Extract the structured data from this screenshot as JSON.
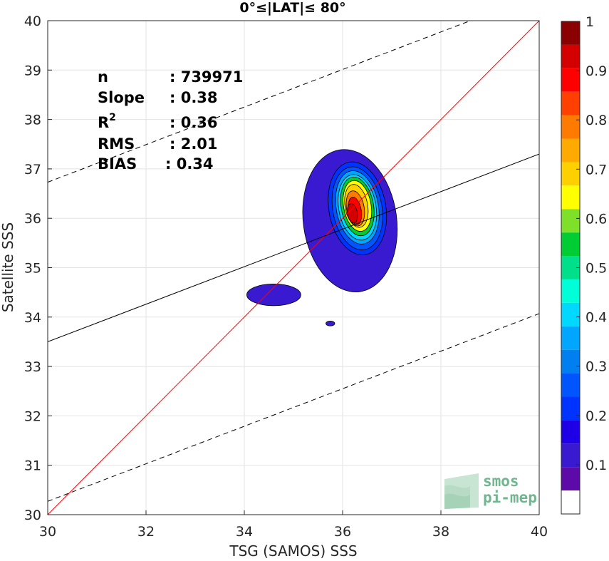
{
  "chart_data": {
    "type": "heatmap",
    "subtype": "filled-contour density scatter",
    "title": "0°≤|LAT|≤ 80°",
    "xlabel": "TSG (SAMOS) SSS",
    "ylabel": "Satellite SSS",
    "xlim": [
      30,
      40
    ],
    "ylim": [
      30,
      40
    ],
    "xticks": [
      30,
      32,
      34,
      36,
      38,
      40
    ],
    "yticks": [
      30,
      31,
      32,
      33,
      34,
      35,
      36,
      37,
      38,
      39,
      40
    ],
    "grid": true,
    "stats": [
      {
        "key": "n",
        "value": ": 739971"
      },
      {
        "key": "Slope",
        "value": ": 0.38"
      },
      {
        "key": "R",
        "sup": "2",
        "value": ": 0.36"
      },
      {
        "key": "RMS",
        "value": ": 2.01"
      },
      {
        "key": "BIAS",
        "value": ": 0.34"
      }
    ],
    "lines": {
      "identity": {
        "x": [
          30,
          40
        ],
        "y": [
          30,
          40
        ],
        "color": "#ff0000",
        "style": "solid"
      },
      "regression": {
        "x": [
          30,
          40
        ],
        "y": [
          33.5,
          37.3
        ],
        "color": "#000000",
        "style": "solid"
      },
      "upper_bound": {
        "x": [
          30,
          38.6
        ],
        "y": [
          36.73,
          40
        ],
        "color": "#000000",
        "style": "dashed"
      },
      "lower_bound": {
        "x": [
          30,
          40
        ],
        "y": [
          30.27,
          34.07
        ],
        "color": "#000000",
        "style": "dashed"
      }
    },
    "colorbar": {
      "ticks": [
        "0.1",
        "0.2",
        "0.3",
        "0.4",
        "0.5",
        "0.6",
        "0.7",
        "0.8",
        "0.9",
        "1"
      ],
      "levels": [
        0,
        0.05,
        0.1,
        0.15,
        0.2,
        0.25,
        0.3,
        0.35,
        0.4,
        0.45,
        0.5,
        0.55,
        0.6,
        0.65,
        0.7,
        0.75,
        0.8,
        0.85,
        0.9,
        0.95,
        1.0
      ],
      "colors": [
        "#ffffff",
        "#5c0aa8",
        "#3a1ad0",
        "#1f00e6",
        "#0033ff",
        "#0055ff",
        "#007ff0",
        "#00a6ff",
        "#00d8ff",
        "#00ffd8",
        "#00e08a",
        "#00cc33",
        "#7fe02a",
        "#ffff00",
        "#ffd000",
        "#ffaa00",
        "#ff7a00",
        "#ff4000",
        "#ff0000",
        "#d40000",
        "#8b0000"
      ]
    },
    "contours": [
      {
        "level": 0.05,
        "color": "#3a1ad0",
        "center": [
          36.15,
          35.95
        ],
        "rx": 0.95,
        "ry": 1.45,
        "rot": -8
      },
      {
        "level": 0.05,
        "color": "#3a1ad0",
        "center": [
          34.6,
          34.45
        ],
        "rx": 0.55,
        "ry": 0.22,
        "rot": 0
      },
      {
        "level": 0.05,
        "color": "#3a1ad0",
        "center": [
          35.75,
          33.87
        ],
        "rx": 0.09,
        "ry": 0.05,
        "rot": 0
      },
      {
        "level": 0.15,
        "color": "#0033ff",
        "center": [
          36.3,
          36.2
        ],
        "rx": 0.58,
        "ry": 0.95,
        "rot": -10
      },
      {
        "level": 0.2,
        "color": "#0055ff",
        "center": [
          36.3,
          36.2
        ],
        "rx": 0.5,
        "ry": 0.85,
        "rot": -10
      },
      {
        "level": 0.3,
        "color": "#00a6ff",
        "center": [
          36.3,
          36.22
        ],
        "rx": 0.43,
        "ry": 0.75,
        "rot": -10
      },
      {
        "level": 0.4,
        "color": "#00d8ff",
        "center": [
          36.3,
          36.22
        ],
        "rx": 0.38,
        "ry": 0.67,
        "rot": -10
      },
      {
        "level": 0.5,
        "color": "#00cc33",
        "center": [
          36.3,
          36.24
        ],
        "rx": 0.33,
        "ry": 0.6,
        "rot": -10
      },
      {
        "level": 0.6,
        "color": "#ffff00",
        "center": [
          36.3,
          36.25
        ],
        "rx": 0.28,
        "ry": 0.52,
        "rot": -10
      },
      {
        "level": 0.7,
        "color": "#ffd000",
        "center": [
          36.28,
          36.25
        ],
        "rx": 0.23,
        "ry": 0.44,
        "rot": -10
      },
      {
        "level": 0.75,
        "color": "#ff7a00",
        "center": [
          36.26,
          36.2
        ],
        "rx": 0.18,
        "ry": 0.36,
        "rot": -10
      },
      {
        "level": 0.85,
        "color": "#ff0000",
        "center": [
          36.25,
          36.15
        ],
        "rx": 0.13,
        "ry": 0.28,
        "rot": -10
      },
      {
        "level": 0.95,
        "color": "#d40000",
        "center": [
          36.2,
          36.1
        ],
        "rx": 0.1,
        "ry": 0.2,
        "rot": -10
      }
    ]
  },
  "logo": {
    "line1": "smos",
    "line2": "pi-mep"
  }
}
